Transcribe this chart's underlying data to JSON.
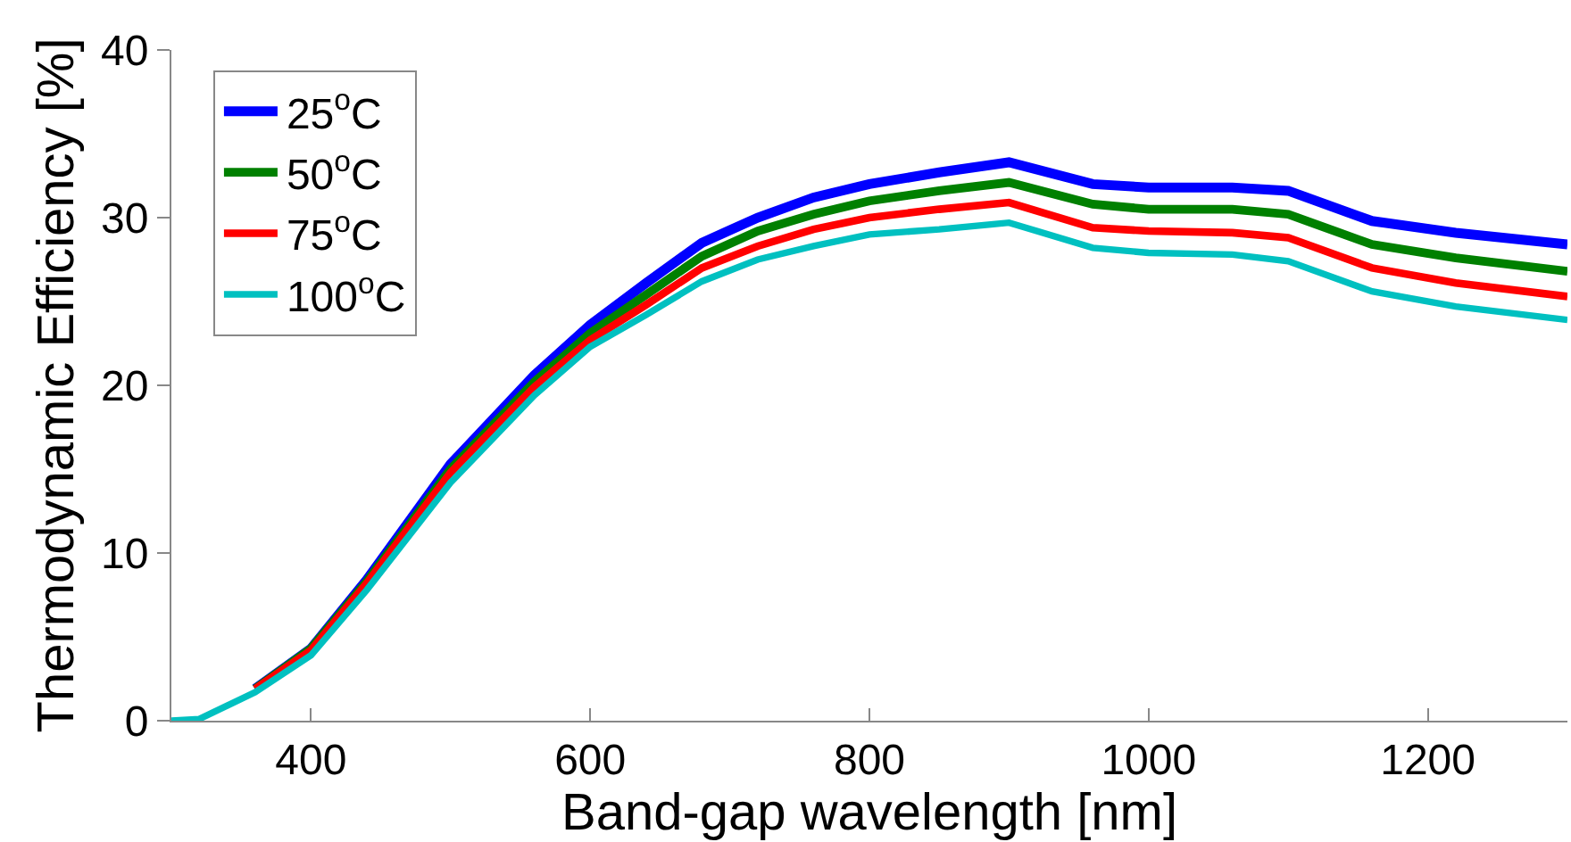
{
  "chart_data": {
    "type": "line",
    "xlabel": "Band-gap wavelength [nm]",
    "ylabel": "Thermodynamic Efficiency [%]",
    "x": [
      300,
      320,
      360,
      400,
      440,
      500,
      560,
      600,
      640,
      680,
      720,
      760,
      800,
      850,
      900,
      960,
      1000,
      1060,
      1100,
      1160,
      1220,
      1300
    ],
    "series": [
      {
        "name": "25$^{o}$C",
        "color": "#0000ff",
        "values": [
          null,
          null,
          1.9,
          4.3,
          8.4,
          15.3,
          20.6,
          23.6,
          26.1,
          28.5,
          30,
          31.2,
          32,
          32.7,
          33.3,
          32,
          31.8,
          31.8,
          31.6,
          29.8,
          29.1,
          28.4
        ]
      },
      {
        "name": "50$^{o}$C",
        "color": "#008000",
        "values": [
          null,
          null,
          1.9,
          4.3,
          8.3,
          15,
          20.2,
          23.1,
          25.4,
          27.7,
          29.2,
          30.2,
          31,
          31.6,
          32.1,
          30.8,
          30.5,
          30.5,
          30.2,
          28.4,
          27.6,
          26.8
        ]
      },
      {
        "name": "75$^{o}$C",
        "color": "#ff0000",
        "values": [
          null,
          null,
          1.9,
          4.2,
          8.2,
          14.8,
          19.9,
          22.7,
          24.8,
          27,
          28.3,
          29.3,
          30,
          30.5,
          30.9,
          29.4,
          29.2,
          29.1,
          28.8,
          27,
          26.1,
          25.3
        ]
      },
      {
        "name": "100$^{o}$C",
        "color": "#00c0c0",
        "values": [
          0,
          0.1,
          1.7,
          3.9,
          7.8,
          14.2,
          19.4,
          22.3,
          24.2,
          26.2,
          27.5,
          28.3,
          29,
          29.3,
          29.7,
          28.2,
          27.9,
          27.8,
          27.4,
          25.6,
          24.7,
          23.9
        ]
      }
    ],
    "xlim": [
      300,
      1300
    ],
    "xticks": [
      400,
      600,
      800,
      1000,
      1200
    ],
    "ylim": [
      0,
      40
    ],
    "yticks": [
      0,
      10,
      20,
      30,
      40
    ],
    "grid": false,
    "legend": "top left",
    "marker": "none",
    "line_style": "solid"
  }
}
